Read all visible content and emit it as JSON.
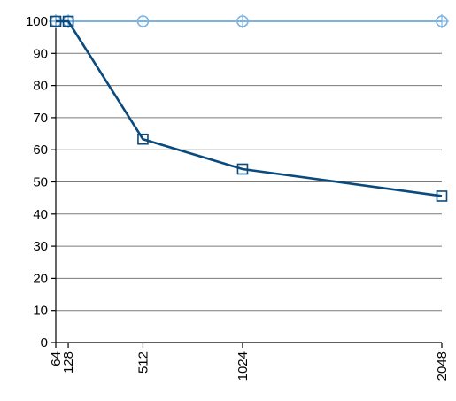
{
  "chart_data": {
    "type": "line",
    "x_categories": [
      "64",
      "128",
      "512",
      "1024",
      "2048"
    ],
    "x": [
      64,
      128,
      512,
      1024,
      2048
    ],
    "xlim": [
      64,
      2048
    ],
    "ylim": [
      0,
      100
    ],
    "y_ticks": [
      "0",
      "10",
      "20",
      "30",
      "40",
      "50",
      "60",
      "70",
      "80",
      "90",
      "100"
    ],
    "grid": true,
    "series": [
      {
        "values": [
          100,
          100,
          100,
          100,
          100
        ],
        "marker": "circle",
        "color": "#7fb3df"
      },
      {
        "values": [
          100,
          100,
          63.3,
          54.0,
          45.6
        ],
        "marker": "square",
        "color": "#0b4a7c"
      }
    ]
  }
}
